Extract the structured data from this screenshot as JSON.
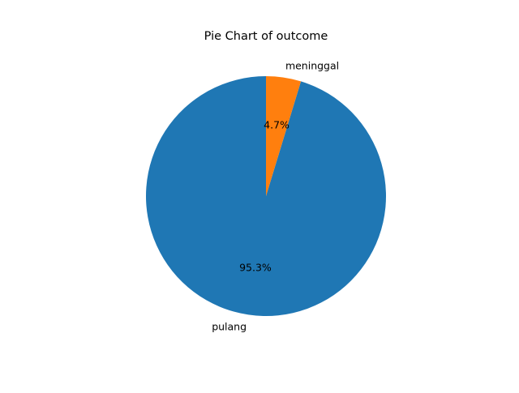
{
  "chart_data": {
    "type": "pie",
    "title": "Pie Chart of outcome",
    "slices": [
      {
        "label": "pulang",
        "value": 95.3,
        "pct_label": "95.3%",
        "color": "#1f77b4"
      },
      {
        "label": "meninggal",
        "value": 4.7,
        "pct_label": "4.7%",
        "color": "#ff7f0e"
      }
    ],
    "start_angle_deg": 90,
    "direction": "counterclockwise"
  }
}
